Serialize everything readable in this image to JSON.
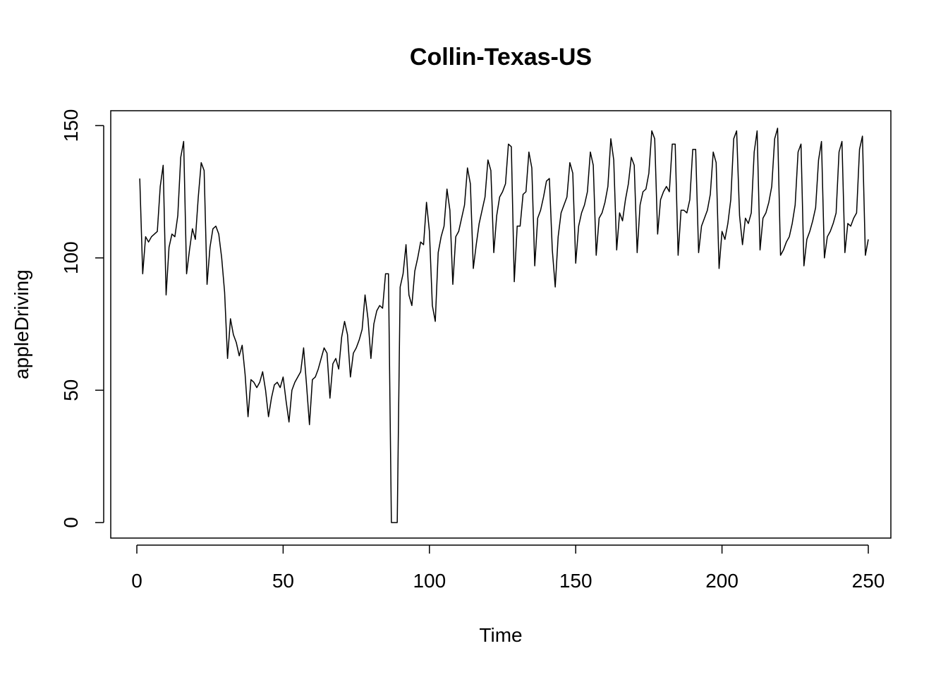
{
  "chart_data": {
    "type": "line",
    "title": "Collin-Texas-US",
    "xlabel": "Time",
    "ylabel": "appleDriving",
    "xlim": [
      0,
      250
    ],
    "ylim": [
      0,
      150
    ],
    "x_ticks": [
      0,
      50,
      100,
      150,
      200,
      250
    ],
    "y_ticks": [
      0,
      50,
      100,
      150
    ],
    "grid": false,
    "x_start": 1,
    "series": [
      {
        "values": [
          130,
          94,
          108,
          106,
          108,
          109,
          110,
          127,
          135,
          86,
          104,
          109,
          108,
          116,
          138,
          144,
          94,
          103,
          111,
          107,
          123,
          136,
          133,
          90,
          104,
          111,
          112,
          109,
          100,
          87,
          62,
          77,
          71,
          68,
          63,
          67,
          56,
          40,
          54,
          53,
          51,
          53,
          57,
          50,
          40,
          47,
          52,
          53,
          51,
          55,
          46,
          38,
          50,
          53,
          55,
          57,
          66,
          52,
          37,
          54,
          55,
          58,
          62,
          66,
          64,
          47,
          60,
          62,
          58,
          70,
          76,
          71,
          55,
          64,
          66,
          69,
          73,
          86,
          77,
          62,
          75,
          80,
          82,
          81,
          94,
          94,
          0,
          0,
          0,
          89,
          94,
          105,
          86,
          82,
          95,
          100,
          106,
          105,
          121,
          110,
          82,
          76,
          102,
          108,
          112,
          126,
          118,
          90,
          108,
          110,
          115,
          120,
          134,
          128,
          96,
          105,
          113,
          118,
          123,
          137,
          133,
          102,
          116,
          123,
          125,
          128,
          143,
          142,
          91,
          112,
          112,
          124,
          125,
          140,
          134,
          97,
          115,
          118,
          123,
          129,
          130,
          103,
          89,
          108,
          117,
          120,
          123,
          136,
          132,
          98,
          112,
          117,
          120,
          125,
          140,
          135,
          101,
          115,
          117,
          121,
          127,
          145,
          137,
          103,
          117,
          114,
          122,
          128,
          138,
          135,
          102,
          120,
          125,
          126,
          132,
          148,
          145,
          109,
          122,
          125,
          127,
          125,
          143,
          143,
          101,
          118,
          118,
          117,
          122,
          141,
          141,
          102,
          112,
          115,
          118,
          124,
          140,
          136,
          96,
          110,
          107,
          113,
          122,
          145,
          148,
          116,
          105,
          115,
          113,
          117,
          140,
          148,
          103,
          115,
          117,
          121,
          127,
          145,
          149,
          101,
          103,
          106,
          108,
          113,
          120,
          140,
          143,
          97,
          107,
          110,
          114,
          119,
          137,
          144,
          100,
          108,
          110,
          113,
          117,
          140,
          144,
          102,
          113,
          112,
          115,
          117,
          141,
          146,
          101,
          107
        ]
      }
    ]
  }
}
